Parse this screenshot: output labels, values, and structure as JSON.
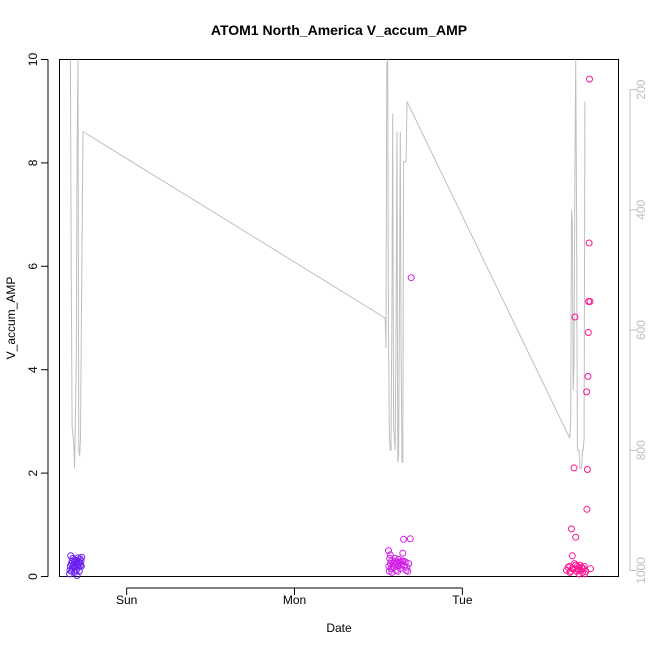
{
  "chart_data": {
    "type": "scatter",
    "title": "ATOM1 North_America V_accum_AMP",
    "xlabel": "Date",
    "ylabel": "V_accum_AMP",
    "x_axis": {
      "type": "time",
      "ticks": [
        "Sun",
        "Mon",
        "Tue"
      ],
      "range_days": [
        -0.4,
        2.93
      ]
    },
    "ylim": [
      0,
      10
    ],
    "y_ticks": [
      "0",
      "2",
      "4",
      "6",
      "8",
      "10"
    ],
    "y2_axis": {
      "reversed": true,
      "range": [
        1010,
        150
      ],
      "ticks": [
        "200",
        "400",
        "600",
        "800",
        "1000"
      ]
    },
    "grid": false,
    "legend": "none",
    "colors": {
      "day1": "#6a1ef0",
      "day2": "#d21ee6",
      "day3": "#ff1493",
      "line": "#bfbfbf"
    },
    "series": [
      {
        "kind": "line",
        "axis": "right",
        "color": "#bfbfbf",
        "points": [
          [
            -0.335,
            150
          ],
          [
            -0.33,
            520
          ],
          [
            -0.325,
            760
          ],
          [
            -0.315,
            790
          ],
          [
            -0.31,
            830
          ],
          [
            -0.3,
            650
          ],
          [
            -0.295,
            300
          ],
          [
            -0.29,
            150
          ],
          [
            -0.285,
            800
          ],
          [
            -0.28,
            810
          ],
          [
            -0.275,
            780
          ],
          [
            -0.27,
            600
          ],
          [
            -0.26,
            270
          ],
          [
            1.54,
            580
          ],
          [
            1.545,
            630
          ],
          [
            1.55,
            160
          ],
          [
            1.555,
            150
          ],
          [
            1.56,
            600
          ],
          [
            1.565,
            780
          ],
          [
            1.57,
            800
          ],
          [
            1.575,
            800
          ],
          [
            1.58,
            580
          ],
          [
            1.585,
            240
          ],
          [
            1.59,
            760
          ],
          [
            1.6,
            800
          ],
          [
            1.605,
            580
          ],
          [
            1.61,
            270
          ],
          [
            1.615,
            820
          ],
          [
            1.62,
            810
          ],
          [
            1.625,
            580
          ],
          [
            1.63,
            270
          ],
          [
            1.635,
            640
          ],
          [
            1.64,
            820
          ],
          [
            1.645,
            820
          ],
          [
            1.65,
            320
          ],
          [
            1.66,
            320
          ],
          [
            1.665,
            320
          ],
          [
            1.67,
            220
          ],
          [
            2.64,
            780
          ],
          [
            2.645,
            750
          ],
          [
            2.65,
            400
          ],
          [
            2.655,
            420
          ],
          [
            2.66,
            700
          ],
          [
            2.665,
            660
          ],
          [
            2.67,
            340
          ],
          [
            2.675,
            150
          ],
          [
            2.68,
            380
          ],
          [
            2.685,
            800
          ],
          [
            2.69,
            800
          ],
          [
            2.695,
            800
          ],
          [
            2.7,
            830
          ],
          [
            2.705,
            830
          ],
          [
            2.71,
            830
          ],
          [
            2.715,
            800
          ],
          [
            2.72,
            800
          ],
          [
            2.725,
            780
          ],
          [
            2.73,
            220
          ]
        ]
      },
      {
        "kind": "points",
        "axis": "left",
        "name": "",
        "color": "#6a1ef0",
        "points": [
          [
            -0.34,
            0.05
          ],
          [
            -0.338,
            0.12
          ],
          [
            -0.335,
            0.2
          ],
          [
            -0.333,
            0.4
          ],
          [
            -0.33,
            0.25
          ],
          [
            -0.328,
            0.1
          ],
          [
            -0.325,
            0.3
          ],
          [
            -0.322,
            0.15
          ],
          [
            -0.32,
            0.35
          ],
          [
            -0.318,
            0.22
          ],
          [
            -0.315,
            0.18
          ],
          [
            -0.312,
            0.28
          ],
          [
            -0.31,
            0.08
          ],
          [
            -0.308,
            0.32
          ],
          [
            -0.305,
            0.2
          ],
          [
            -0.302,
            0.25
          ],
          [
            -0.3,
            0.12
          ],
          [
            -0.298,
            0.3
          ],
          [
            -0.295,
            0.02
          ],
          [
            -0.292,
            0.22
          ],
          [
            -0.29,
            0.36
          ],
          [
            -0.288,
            0.18
          ],
          [
            -0.285,
            0.28
          ],
          [
            -0.282,
            0.1
          ],
          [
            -0.28,
            0.26
          ],
          [
            -0.278,
            0.34
          ],
          [
            -0.275,
            0.22
          ],
          [
            -0.272,
            0.3
          ],
          [
            -0.27,
            0.2
          ],
          [
            -0.268,
            0.37
          ]
        ]
      },
      {
        "kind": "points",
        "axis": "left",
        "name": "",
        "color": "#d21ee6",
        "points": [
          [
            1.56,
            0.5
          ],
          [
            1.562,
            0.2
          ],
          [
            1.565,
            0.1
          ],
          [
            1.567,
            0.35
          ],
          [
            1.57,
            0.42
          ],
          [
            1.572,
            0.25
          ],
          [
            1.575,
            0.15
          ],
          [
            1.578,
            0.3
          ],
          [
            1.58,
            0.08
          ],
          [
            1.585,
            0.2
          ],
          [
            1.59,
            0.26
          ],
          [
            1.595,
            0.3
          ],
          [
            1.6,
            0.22
          ],
          [
            1.605,
            0.12
          ],
          [
            1.61,
            0.28
          ],
          [
            1.615,
            0.2
          ],
          [
            1.62,
            0.33
          ],
          [
            1.625,
            0.25
          ],
          [
            1.63,
            0.15
          ],
          [
            1.635,
            0.22
          ],
          [
            1.64,
            0.3
          ],
          [
            1.645,
            0.45
          ],
          [
            1.65,
            0.72
          ],
          [
            1.655,
            0.2
          ],
          [
            1.66,
            0.28
          ],
          [
            1.665,
            0.12
          ],
          [
            1.67,
            0.18
          ],
          [
            1.675,
            0.1
          ],
          [
            1.68,
            0.25
          ],
          [
            1.69,
            0.73
          ],
          [
            1.695,
            5.78
          ],
          [
            1.59,
            0.18
          ],
          [
            1.6,
            0.35
          ],
          [
            1.615,
            0.1
          ],
          [
            1.632,
            0.28
          ],
          [
            1.647,
            0.3
          ]
        ]
      },
      {
        "kind": "points",
        "axis": "left",
        "name": "",
        "color": "#ff1493",
        "points": [
          [
            2.64,
            0.2
          ],
          [
            2.645,
            0.1
          ],
          [
            2.65,
            0.92
          ],
          [
            2.655,
            0.4
          ],
          [
            2.66,
            0.15
          ],
          [
            2.665,
            2.1
          ],
          [
            2.668,
            0.25
          ],
          [
            2.67,
            5.02
          ],
          [
            2.675,
            0.76
          ],
          [
            2.68,
            0.1
          ],
          [
            2.685,
            0.2
          ],
          [
            2.69,
            0.15
          ],
          [
            2.695,
            0.05
          ],
          [
            2.7,
            0.22
          ],
          [
            2.705,
            0.12
          ],
          [
            2.71,
            0.18
          ],
          [
            2.715,
            0.08
          ],
          [
            2.72,
            0.15
          ],
          [
            2.725,
            0.2
          ],
          [
            2.73,
            0.05
          ],
          [
            2.735,
            0.1
          ],
          [
            2.74,
            3.57
          ],
          [
            2.742,
            1.3
          ],
          [
            2.745,
            2.07
          ],
          [
            2.748,
            3.87
          ],
          [
            2.75,
            4.72
          ],
          [
            2.752,
            5.32
          ],
          [
            2.755,
            6.45
          ],
          [
            2.757,
            9.62
          ],
          [
            2.76,
            5.32
          ],
          [
            2.763,
            0.15
          ],
          [
            2.62,
            0.12
          ],
          [
            2.63,
            0.18
          ],
          [
            2.64,
            0.08
          ],
          [
            2.655,
            0.15
          ],
          [
            2.675,
            0.22
          ],
          [
            2.69,
            0.12
          ]
        ]
      }
    ]
  }
}
